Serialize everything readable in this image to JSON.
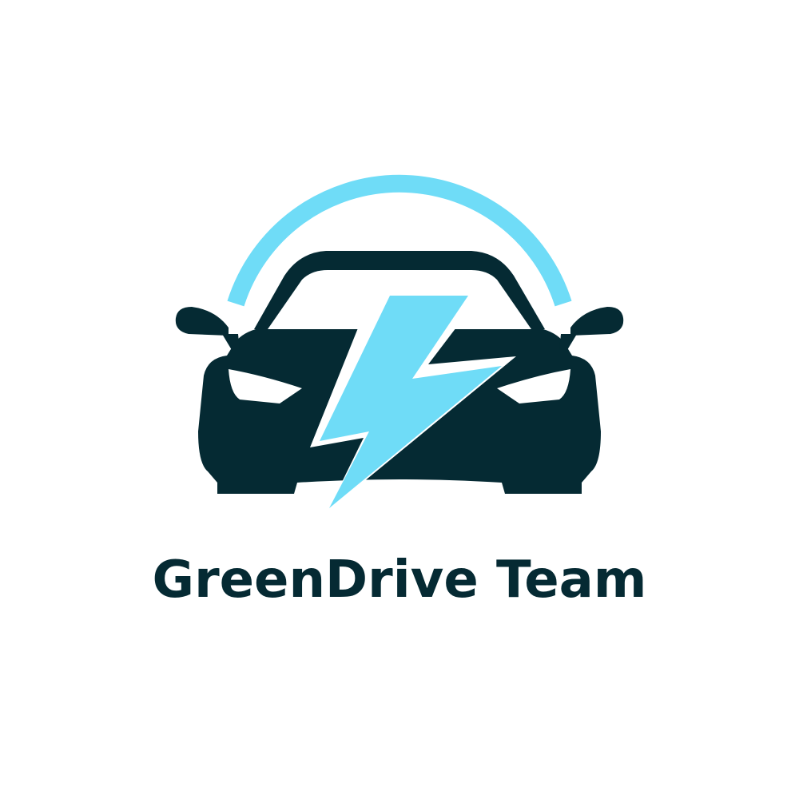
{
  "logo": {
    "brand_name": "GreenDrive Team",
    "icon": "electric-car-lightning-icon",
    "colors": {
      "background": "#ffffff",
      "primary_dark": "#052a33",
      "accent_blue": "#6fdcf7"
    }
  }
}
